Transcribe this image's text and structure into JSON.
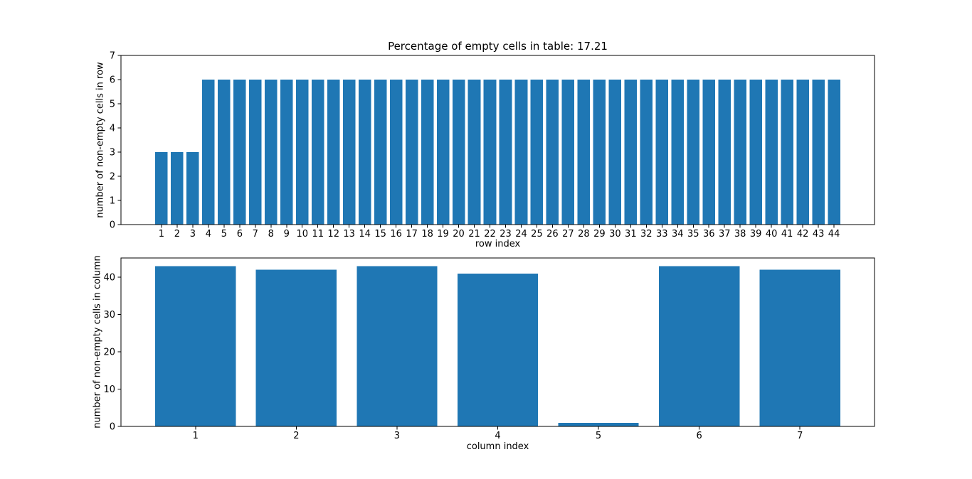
{
  "figure": {
    "background": "#ffffff"
  },
  "chart_data": [
    {
      "type": "bar",
      "title": "Percentage of empty cells in table: 17.21",
      "xlabel": "row index",
      "ylabel": "number of non-empty cells in row",
      "categories": [
        1,
        2,
        3,
        4,
        5,
        6,
        7,
        8,
        9,
        10,
        11,
        12,
        13,
        14,
        15,
        16,
        17,
        18,
        19,
        20,
        21,
        22,
        23,
        24,
        25,
        26,
        27,
        28,
        29,
        30,
        31,
        32,
        33,
        34,
        35,
        36,
        37,
        38,
        39,
        40,
        41,
        42,
        43,
        44
      ],
      "values": [
        3,
        3,
        3,
        6,
        6,
        6,
        6,
        6,
        6,
        6,
        6,
        6,
        6,
        6,
        6,
        6,
        6,
        6,
        6,
        6,
        6,
        6,
        6,
        6,
        6,
        6,
        6,
        6,
        6,
        6,
        6,
        6,
        6,
        6,
        6,
        6,
        6,
        6,
        6,
        6,
        6,
        6,
        6,
        6
      ],
      "ylim": [
        0,
        7
      ],
      "yticks": [
        0,
        1,
        2,
        3,
        4,
        5,
        6,
        7
      ],
      "grid": false,
      "legend": false,
      "bar_color": "#1f77b4",
      "axis_color": "#000000"
    },
    {
      "type": "bar",
      "title": "",
      "xlabel": "column index",
      "ylabel": "number of non-empty cells in column",
      "categories": [
        1,
        2,
        3,
        4,
        5,
        6,
        7
      ],
      "values": [
        43,
        42,
        43,
        41,
        1,
        43,
        42
      ],
      "ylim": [
        0,
        45.15
      ],
      "yticks": [
        0,
        10,
        20,
        30,
        40
      ],
      "grid": false,
      "legend": false,
      "bar_color": "#1f77b4",
      "axis_color": "#000000"
    }
  ]
}
